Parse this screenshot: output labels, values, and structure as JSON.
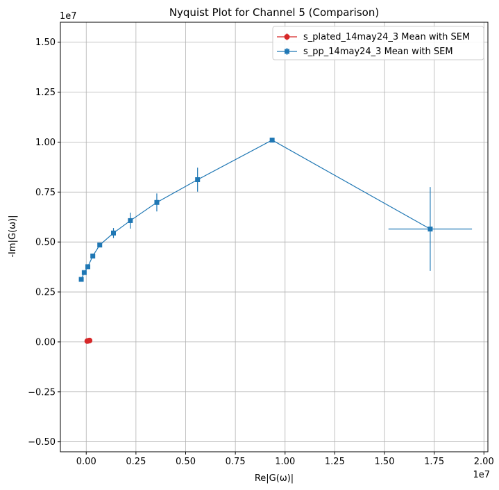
{
  "chart_data": {
    "type": "scatter",
    "title": "Nyquist Plot for Channel 5 (Comparison)",
    "xlabel": "Re|G(ω)|",
    "ylabel": "-Im|G(ω)|",
    "x_offset_label": "1e7",
    "y_offset_label": "1e7",
    "xlim": [
      -0.13,
      2.02
    ],
    "ylim": [
      -0.55,
      1.6
    ],
    "x_ticks": [
      0.0,
      0.25,
      0.5,
      0.75,
      1.0,
      1.25,
      1.5,
      1.75,
      2.0
    ],
    "x_tick_labels": [
      "0.00",
      "0.25",
      "0.50",
      "0.75",
      "1.00",
      "1.25",
      "1.50",
      "1.75",
      "2.00"
    ],
    "y_ticks": [
      -0.5,
      -0.25,
      0.0,
      0.25,
      0.5,
      0.75,
      1.0,
      1.25,
      1.5
    ],
    "y_tick_labels": [
      "−0.50",
      "−0.25",
      "0.00",
      "0.25",
      "0.50",
      "0.75",
      "1.00",
      "1.25",
      "1.50"
    ],
    "grid": true,
    "legend_position": "top-right",
    "series": [
      {
        "name": "s_plated_14may24_3 Mean with SEM",
        "color": "#d62728",
        "marker": "circle",
        "points": [
          {
            "x": 0.005,
            "y": 0.004,
            "xerr": 0.0,
            "yerr": 0.0
          },
          {
            "x": 0.009,
            "y": 0.005,
            "xerr": 0.0,
            "yerr": 0.0
          },
          {
            "x": 0.013,
            "y": 0.006,
            "xerr": 0.0,
            "yerr": 0.0
          },
          {
            "x": 0.017,
            "y": 0.007,
            "xerr": 0.0,
            "yerr": 0.0
          }
        ]
      },
      {
        "name": "s_pp_14may24_3 Mean with SEM",
        "color": "#1f77b4",
        "marker": "square",
        "points": [
          {
            "x": -0.025,
            "y": 0.313,
            "xerr": 0.0,
            "yerr": 0.0
          },
          {
            "x": -0.01,
            "y": 0.347,
            "xerr": 0.0,
            "yerr": 0.0
          },
          {
            "x": 0.008,
            "y": 0.376,
            "xerr": 0.0,
            "yerr": 0.0
          },
          {
            "x": 0.033,
            "y": 0.43,
            "xerr": 0.0,
            "yerr": 0.0
          },
          {
            "x": 0.068,
            "y": 0.485,
            "xerr": 0.0,
            "yerr": 0.0
          },
          {
            "x": 0.137,
            "y": 0.545,
            "xerr": 0.0,
            "yerr": 0.025
          },
          {
            "x": 0.222,
            "y": 0.607,
            "xerr": 0.0,
            "yerr": 0.04
          },
          {
            "x": 0.355,
            "y": 0.698,
            "xerr": 0.0,
            "yerr": 0.045
          },
          {
            "x": 0.56,
            "y": 0.812,
            "xerr": 0.0,
            "yerr": 0.06
          },
          {
            "x": 0.935,
            "y": 1.01,
            "xerr": 0.0,
            "yerr": 0.012
          },
          {
            "x": 1.73,
            "y": 0.565,
            "xerr": 0.21,
            "yerr": 0.21
          }
        ]
      }
    ]
  }
}
